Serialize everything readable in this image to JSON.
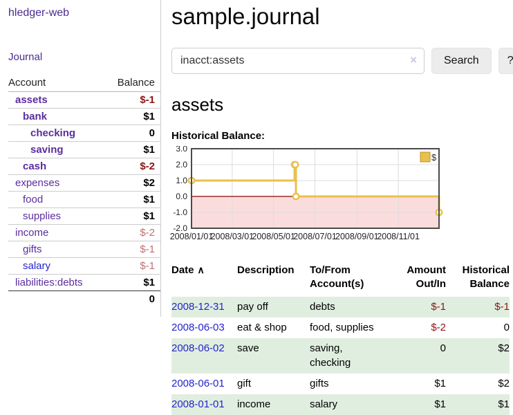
{
  "app": {
    "brand": "hledger-web",
    "nav": {
      "journal": "Journal"
    }
  },
  "sidebar": {
    "columns": {
      "account": "Account",
      "balance": "Balance"
    },
    "accounts": [
      {
        "name": "assets",
        "balance": "$-1"
      },
      {
        "name": "bank",
        "balance": "$1"
      },
      {
        "name": "checking",
        "balance": "0"
      },
      {
        "name": "saving",
        "balance": "$1"
      },
      {
        "name": "cash",
        "balance": "$-2"
      },
      {
        "name": "expenses",
        "balance": "$2"
      },
      {
        "name": "food",
        "balance": "$1"
      },
      {
        "name": "supplies",
        "balance": "$1"
      },
      {
        "name": "income",
        "balance": "$-2"
      },
      {
        "name": "gifts",
        "balance": "$-1"
      },
      {
        "name": "salary",
        "balance": "$-1"
      },
      {
        "name": "liabilities:debts",
        "balance": "$1"
      }
    ],
    "total": "0"
  },
  "main": {
    "title": "sample.journal",
    "search": {
      "value": "inacct:assets",
      "clear": "×",
      "button": "Search",
      "help": "?"
    },
    "account_heading": "assets",
    "chart_label": "Historical Balance:"
  },
  "chart_data": {
    "type": "line",
    "step": true,
    "title": "Historical Balance",
    "series": [
      {
        "name": "$",
        "points": [
          [
            "2008-01-01",
            1
          ],
          [
            "2008-06-01",
            2
          ],
          [
            "2008-06-02",
            2
          ],
          [
            "2008-06-03",
            0
          ],
          [
            "2008-12-31",
            -1
          ]
        ]
      }
    ],
    "xlim": [
      "2008-01-01",
      "2008-12-31"
    ],
    "ylim": [
      -2,
      3
    ],
    "y_ticks": [
      3,
      2,
      1,
      0,
      -1,
      -2
    ],
    "x_tick_dates": [
      "2008-01-01",
      "2008-03-01",
      "2008-05-01",
      "2008-07-01",
      "2008-09-01",
      "2008-11-01"
    ],
    "x_tick_labels": [
      "2008/01/01",
      "2008/03/01",
      "2008/05/01",
      "2008/07/01",
      "2008/09/01",
      "2008/11/01"
    ],
    "legend": {
      "position": "top-right",
      "label": "$"
    },
    "grid": true,
    "colors": {
      "line": "#e9c04b",
      "marker_fill": "#ffffff",
      "negative_region": "#fbdcdc",
      "zero_line": "#8b0000",
      "grid": "#dcdcdc",
      "border": "#4a4a4a",
      "legend_fill": "#e9c04b",
      "legend_border": "#b8952f",
      "tick_text": "#222222"
    }
  },
  "register": {
    "columns": {
      "date": "Date",
      "description": "Description",
      "tofrom": "To/From Account(s)",
      "amount": "Amount Out/In",
      "balance": "Historical Balance"
    },
    "sort_icon": "∧",
    "rows": [
      {
        "date": "2008-12-31",
        "description": "pay off",
        "tofrom": "debts",
        "amount": "$-1",
        "balance": "$-1"
      },
      {
        "date": "2008-06-03",
        "description": "eat & shop",
        "tofrom": "food, supplies",
        "amount": "$-2",
        "balance": "0"
      },
      {
        "date": "2008-06-02",
        "description": "save",
        "tofrom": "saving,\nchecking",
        "amount": "0",
        "balance": "$2"
      },
      {
        "date": "2008-06-01",
        "description": "gift",
        "tofrom": "gifts",
        "amount": "$1",
        "balance": "$2"
      },
      {
        "date": "2008-01-01",
        "description": "income",
        "tofrom": "salary",
        "amount": "$1",
        "balance": "$1"
      }
    ]
  }
}
